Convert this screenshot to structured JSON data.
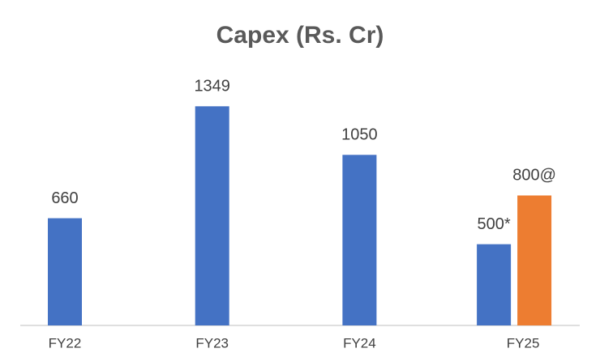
{
  "chart_data": {
    "type": "bar",
    "title": "Capex (Rs. Cr)",
    "categories": [
      "FY22",
      "FY23",
      "FY24",
      "FY25"
    ],
    "series": [
      {
        "color": "#4472c4",
        "values": [
          660,
          1349,
          1050,
          500
        ],
        "value_labels": [
          "660",
          "1349",
          "1050",
          "500*"
        ]
      },
      {
        "color": "#ed7d31",
        "values": [
          null,
          null,
          null,
          800
        ],
        "value_labels": [
          null,
          null,
          null,
          "800@"
        ]
      }
    ],
    "ylim": [
      0,
      1500
    ],
    "grid": false
  }
}
